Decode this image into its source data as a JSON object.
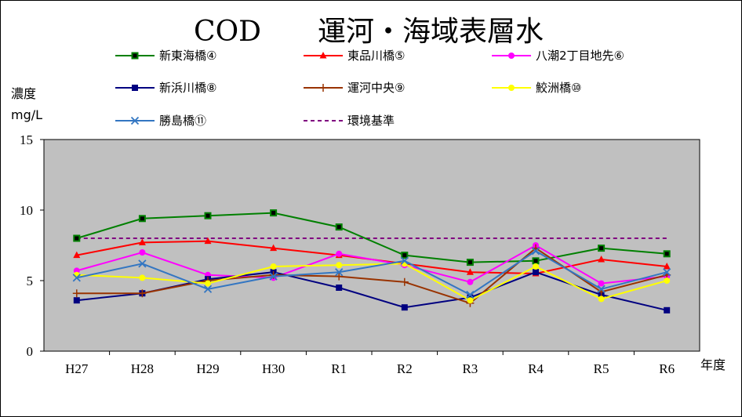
{
  "chart_data": {
    "type": "line",
    "title": "COD　　運河・海域表層水",
    "ylabel_line1": "濃度",
    "ylabel_line2": "mg/L",
    "xlabel": "年度",
    "categories": [
      "H27",
      "H28",
      "H29",
      "H30",
      "R1",
      "R2",
      "R3",
      "R4",
      "R5",
      "R6"
    ],
    "ylim": [
      0,
      15
    ],
    "yticks": [
      "0",
      "5",
      "10",
      "15"
    ],
    "grid": false,
    "plot_background": "#c0c0c0",
    "legend_position": "top",
    "series": [
      {
        "name": "新東海橋④",
        "color": "#008000",
        "marker": "square-open",
        "values": [
          8.0,
          9.4,
          9.6,
          9.8,
          8.8,
          6.8,
          6.3,
          6.4,
          7.3,
          6.9
        ]
      },
      {
        "name": "東品川橋⑤",
        "color": "#ff0000",
        "marker": "triangle",
        "values": [
          6.8,
          7.7,
          7.8,
          7.3,
          6.8,
          6.2,
          5.6,
          5.5,
          6.5,
          6.0
        ]
      },
      {
        "name": "八潮2丁目地先⑥",
        "color": "#ff00ff",
        "marker": "circle",
        "values": [
          5.7,
          7.0,
          5.4,
          5.2,
          6.9,
          6.1,
          4.9,
          7.5,
          4.8,
          5.3
        ]
      },
      {
        "name": "新浜川橋⑧",
        "color": "#000080",
        "marker": "square",
        "values": [
          3.6,
          4.1,
          5.1,
          5.6,
          4.5,
          3.1,
          3.8,
          5.6,
          4.0,
          2.9
        ]
      },
      {
        "name": "運河中央⑨",
        "color": "#993300",
        "marker": "plus",
        "values": [
          4.1,
          4.1,
          5.0,
          5.4,
          5.3,
          4.9,
          3.4,
          7.3,
          4.2,
          5.4
        ]
      },
      {
        "name": "鮫洲橋⑩",
        "color": "#ffff00",
        "marker": "circle",
        "values": [
          5.4,
          5.2,
          4.8,
          6.0,
          6.1,
          6.2,
          3.6,
          6.0,
          3.7,
          5.0
        ]
      },
      {
        "name": "勝島橋⑪",
        "color": "#3376c2",
        "marker": "x",
        "values": [
          5.2,
          6.2,
          4.4,
          5.3,
          5.6,
          6.4,
          4.0,
          7.1,
          4.4,
          5.6
        ]
      },
      {
        "name": "環境基準",
        "color": "#800080",
        "marker": "none",
        "dashed": true,
        "values": [
          8,
          8,
          8,
          8,
          8,
          8,
          8,
          8,
          8,
          8
        ]
      }
    ]
  }
}
